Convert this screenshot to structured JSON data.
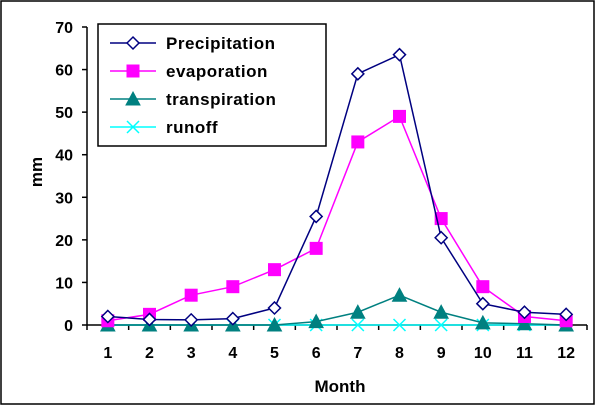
{
  "chart_data": {
    "type": "line",
    "xlabel": "Month",
    "ylabel": "mm",
    "categories": [
      "1",
      "2",
      "3",
      "4",
      "5",
      "6",
      "7",
      "8",
      "9",
      "10",
      "11",
      "12"
    ],
    "ylim": [
      0,
      70
    ],
    "yticks": [
      0,
      10,
      20,
      30,
      40,
      50,
      60,
      70
    ],
    "grid": false,
    "legend_position": "top-left",
    "series": [
      {
        "name": "Precipitation",
        "color": "#000080",
        "marker": "diamond-open",
        "values": [
          2,
          1.3,
          1.2,
          1.5,
          4,
          25.5,
          59,
          63.5,
          20.5,
          5,
          3,
          2.5
        ]
      },
      {
        "name": "evaporation",
        "color": "#ff00ff",
        "marker": "square-filled",
        "values": [
          1,
          2.5,
          7,
          9,
          13,
          18,
          43,
          49,
          25,
          9,
          2,
          1
        ]
      },
      {
        "name": "transpiration",
        "color": "#008080",
        "marker": "triangle-filled",
        "values": [
          0,
          0,
          0,
          0,
          0,
          0.8,
          3,
          7,
          3,
          0.5,
          0.3,
          0
        ]
      },
      {
        "name": "runoff",
        "color": "#00ffff",
        "marker": "x",
        "values": [
          0,
          0,
          0,
          0,
          0,
          0,
          0,
          0,
          0,
          0,
          0,
          0
        ]
      }
    ]
  }
}
